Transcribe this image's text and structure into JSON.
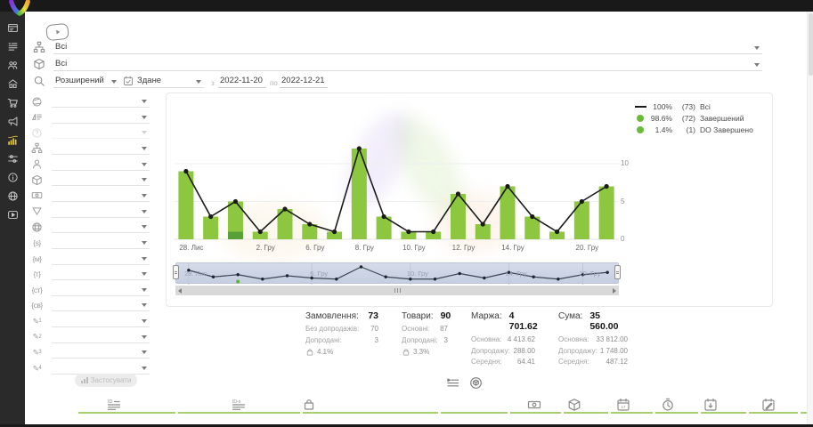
{
  "colors": {
    "bar_green": "#8dc63f",
    "bar_green_dark": "#57a038",
    "line_black": "#1a1a1a",
    "legend_green": "#68bb36",
    "accent_yellow": "#e3c63e",
    "nav_bg": "#ccd4e4",
    "underline_green": "#a8cf6e"
  },
  "sidebar": {
    "items": [
      {
        "icon": "dashboard"
      },
      {
        "icon": "orders"
      },
      {
        "icon": "customers"
      },
      {
        "icon": "store"
      },
      {
        "icon": "cart"
      },
      {
        "icon": "promo"
      },
      {
        "icon": "analytics",
        "active": true
      },
      {
        "icon": "settings"
      },
      {
        "icon": "info"
      },
      {
        "icon": "language"
      },
      {
        "icon": "video"
      }
    ]
  },
  "filters": {
    "status_group": {
      "value": "Всі"
    },
    "product_group": {
      "value": "Всі"
    },
    "search_mode": {
      "value": "Розширений"
    },
    "date_type": {
      "value": "Здане"
    },
    "date_from_label": "з",
    "date_from": "2022-11-20",
    "date_to_label": "по",
    "date_to": "2022-12-21",
    "apply_label": "Застосувати",
    "side_rows": [
      {
        "icon": "globe"
      },
      {
        "icon": "sort"
      },
      {
        "icon": "question",
        "disabled": true
      },
      {
        "icon": "hierarchy"
      },
      {
        "icon": "person"
      },
      {
        "icon": "package"
      },
      {
        "icon": "banknote"
      },
      {
        "icon": "funnel"
      },
      {
        "icon": "globe-grid"
      },
      {
        "icon": "brace-s",
        "glyph": "{s}"
      },
      {
        "icon": "brace-m",
        "glyph": "{м}"
      },
      {
        "icon": "brace-t",
        "glyph": "{т}"
      },
      {
        "icon": "brace-st",
        "glyph": "{ст}"
      },
      {
        "icon": "brace-sv",
        "glyph": "{св}"
      },
      {
        "icon": "pencil-1",
        "glyph": "✎",
        "sub": "1"
      },
      {
        "icon": "pencil-2",
        "glyph": "✎",
        "sub": "2"
      },
      {
        "icon": "pencil-3",
        "glyph": "✎",
        "sub": "3"
      },
      {
        "icon": "pencil-4",
        "glyph": "✎",
        "sub": "4"
      }
    ]
  },
  "chart_data": {
    "type": "bar+line",
    "stacked": true,
    "n_points": 18,
    "series": [
      {
        "name": "Всі",
        "type": "line",
        "color": "#1a1a1a",
        "values": [
          9,
          3,
          5,
          1,
          4,
          2,
          1,
          12,
          3,
          1,
          1,
          6,
          2,
          7,
          3,
          1,
          5,
          7
        ]
      },
      {
        "name": "Завершений",
        "type": "bar",
        "color": "#8dc63f",
        "values": [
          9,
          3,
          4,
          1,
          4,
          2,
          1,
          12,
          3,
          1,
          1,
          6,
          2,
          7,
          3,
          1,
          5,
          7
        ]
      },
      {
        "name": "DO Завершено",
        "type": "bar",
        "color": "#57a038",
        "values": [
          0,
          0,
          1,
          0,
          0,
          0,
          0,
          0,
          0,
          0,
          0,
          0,
          0,
          0,
          0,
          0,
          0,
          0
        ]
      }
    ],
    "x_tick_labels": [
      "28. Лис",
      "2. Гру",
      "6. Гру",
      "8. Гру",
      "10. Гру",
      "12. Гру",
      "14. Гру",
      "20. Гру"
    ],
    "x_tick_indexes": [
      0,
      3,
      5,
      7,
      9,
      11,
      13,
      16
    ],
    "yticks": [
      0,
      5,
      10
    ],
    "ylim": [
      0,
      12.75
    ],
    "legend": [
      {
        "marker": "line",
        "color": "#1a1a1a",
        "pct": "100%",
        "count": "(73)",
        "name": "Всі"
      },
      {
        "marker": "dot",
        "color": "#68bb36",
        "pct": "98.6%",
        "count": "(72)",
        "name": "Завершений"
      },
      {
        "marker": "dot",
        "color": "#68bb36",
        "pct": "1.4%",
        "count": "(1)",
        "name": "DO Завершено"
      }
    ],
    "navigator": {
      "labels": [
        {
          "index": 0,
          "text": "28. Лис"
        },
        {
          "index": 5,
          "text": "6. Гру"
        },
        {
          "index": 9,
          "text": "10. Гру"
        },
        {
          "index": 13,
          "text": "14. Гру"
        },
        {
          "index": 16,
          "text": "20. Гру"
        }
      ],
      "do_marker_index": 2
    }
  },
  "stats": {
    "columns": [
      {
        "title": "Замовлення:",
        "value": "73",
        "rows": [
          {
            "label": "Без допродажів:",
            "value": "70"
          },
          {
            "label": "Допродані:",
            "value": "3"
          }
        ],
        "footer": {
          "icon": "bag",
          "value": "4.1%"
        }
      },
      {
        "title": "Товари:",
        "value": "90",
        "rows": [
          {
            "label": "Основні:",
            "value": "87"
          },
          {
            "label": "Допродані:",
            "value": "3"
          }
        ],
        "footer": {
          "icon": "bag",
          "value": "3.3%"
        }
      },
      {
        "title": "Маржа:",
        "value": "4 701.62",
        "rows": [
          {
            "label": "Основна:",
            "value": "4 413.62"
          },
          {
            "label": "Допродажу:",
            "value": "288.00"
          },
          {
            "label": "Середня:",
            "value": "64.41"
          }
        ]
      },
      {
        "title": "Сума:",
        "value": "35 560.00",
        "rows": [
          {
            "label": "Основна:",
            "value": "33 812.00"
          },
          {
            "label": "Допродажу:",
            "value": "1 748.00"
          },
          {
            "label": "Середня:",
            "value": "487.12"
          }
        ]
      }
    ]
  },
  "view_toggles": [
    {
      "icon": "list-indent"
    },
    {
      "icon": "package-circle"
    }
  ],
  "table_header": {
    "icons": [
      "id-list",
      "id-card",
      "bag",
      "banknote",
      "package",
      "calendar",
      "clock",
      "calendar-down",
      "calendar-edit"
    ]
  }
}
